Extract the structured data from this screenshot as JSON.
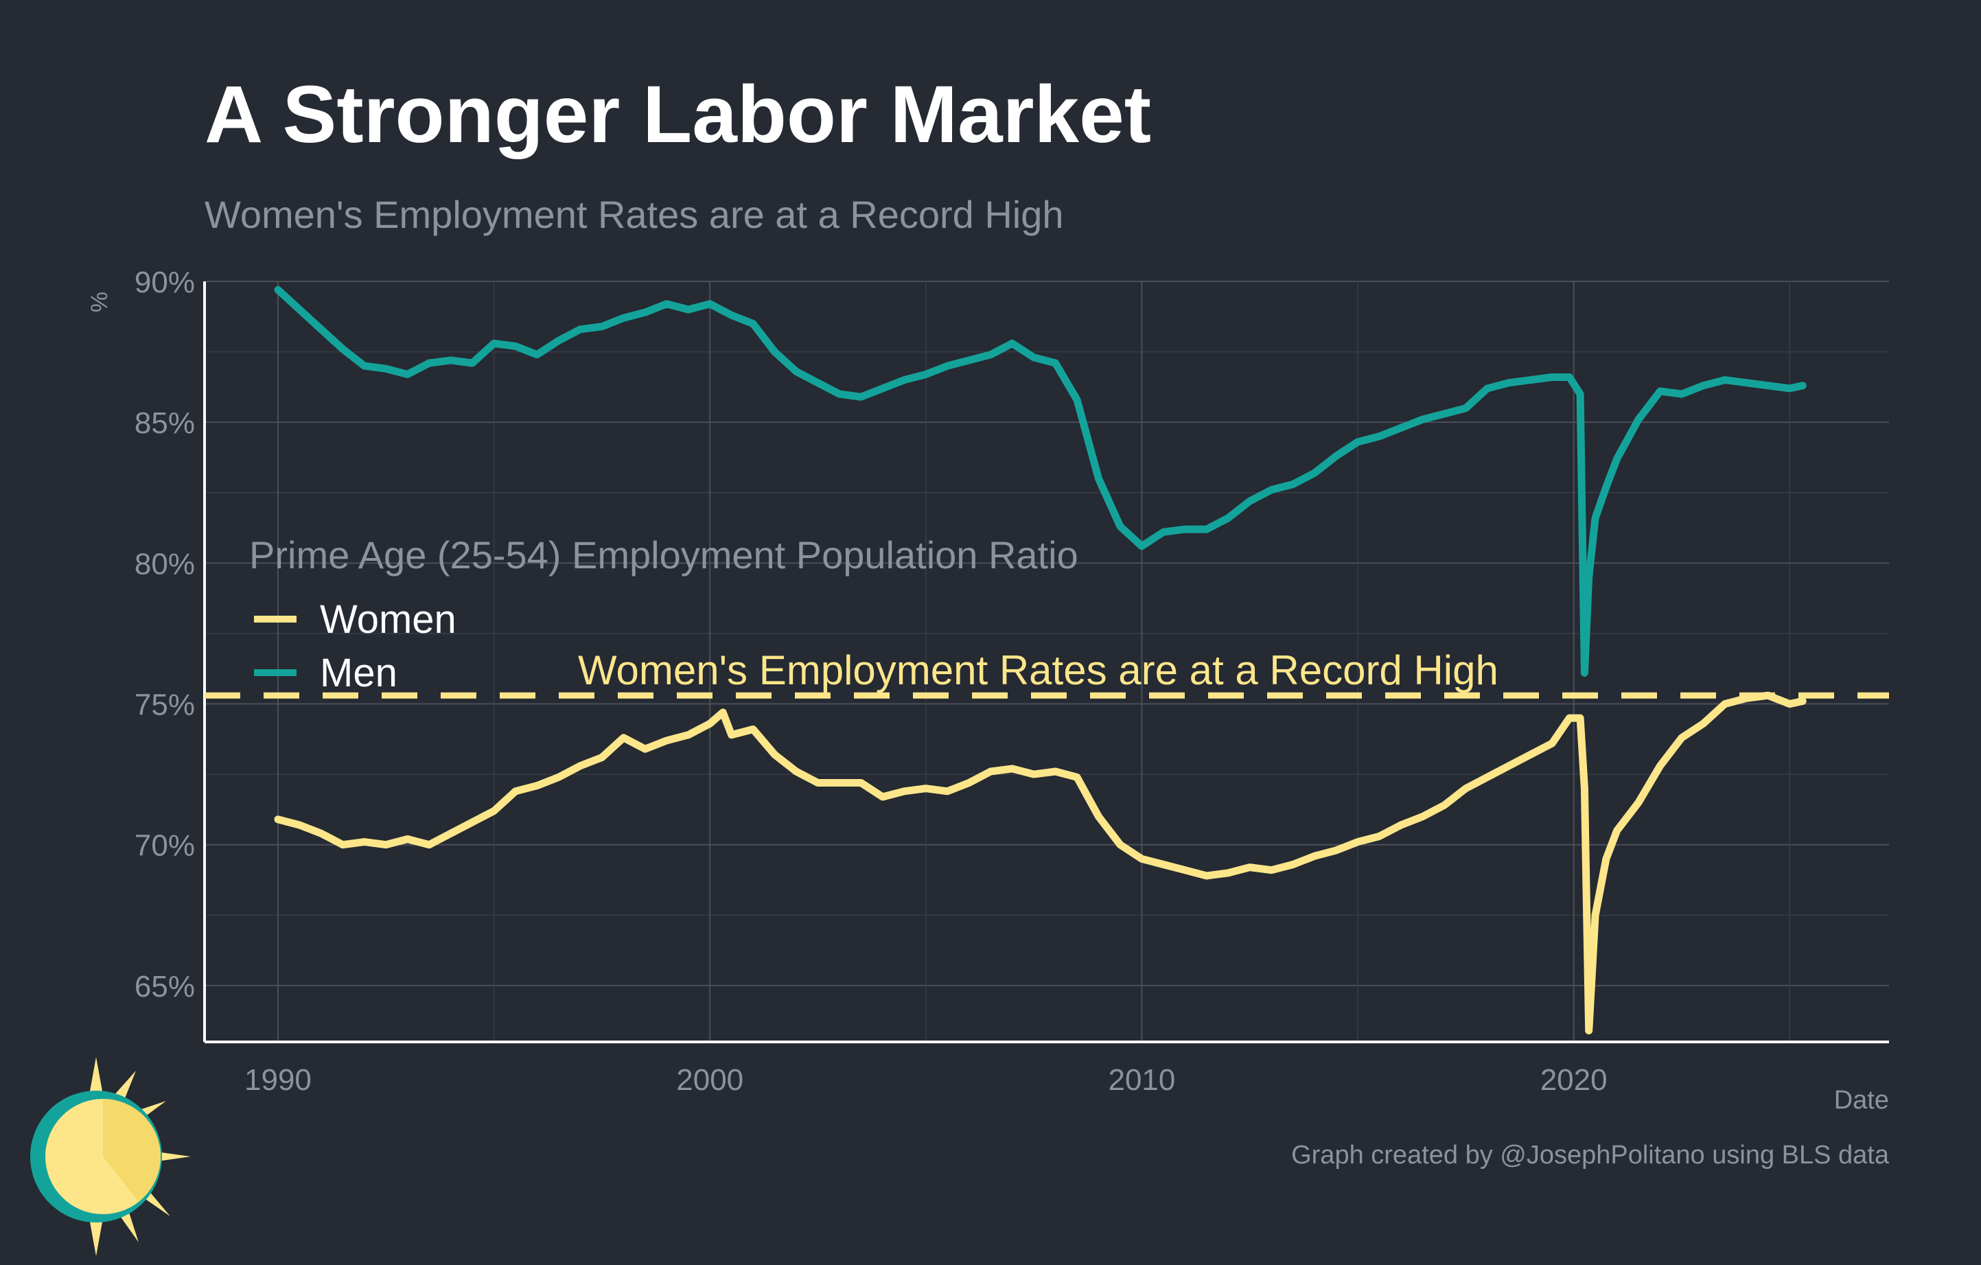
{
  "title": "A Stronger Labor Market",
  "subtitle": "Women's Employment Rates are at a Record High",
  "credit": "Graph created by @JosephPolitano using BLS data",
  "logo": {
    "icon": "sun-logo-icon"
  },
  "chart_data": {
    "type": "line",
    "ylabel": "%",
    "xlabel": "Date",
    "ylim": [
      63.0,
      90.0
    ],
    "xlim": [
      1988.3,
      2027.3
    ],
    "yticks": [
      65,
      70,
      75,
      80,
      85,
      90
    ],
    "ytick_labels": [
      "65%",
      "70%",
      "75%",
      "80%",
      "85%",
      "90%"
    ],
    "xticks": [
      1990,
      2000,
      2010,
      2020
    ],
    "xtick_labels": [
      "1990",
      "2000",
      "2010",
      "2020"
    ],
    "grid": true,
    "legend": {
      "title": "Prime Age (25-54) Employment Population Ratio",
      "placement": "left-middle"
    },
    "series": [
      {
        "name": "Women",
        "color": "#fde68a",
        "x": [
          1990.0,
          1990.5,
          1991.0,
          1991.5,
          1992.0,
          1992.5,
          1993.0,
          1993.5,
          1994.0,
          1994.5,
          1995.0,
          1995.5,
          1996.0,
          1996.5,
          1997.0,
          1997.5,
          1998.0,
          1998.5,
          1999.0,
          1999.5,
          2000.0,
          2000.3,
          2000.5,
          2001.0,
          2001.5,
          2002.0,
          2002.5,
          2003.0,
          2003.5,
          2004.0,
          2004.5,
          2005.0,
          2005.5,
          2006.0,
          2006.5,
          2007.0,
          2007.5,
          2008.0,
          2008.5,
          2009.0,
          2009.5,
          2010.0,
          2010.5,
          2011.0,
          2011.5,
          2012.0,
          2012.5,
          2013.0,
          2013.5,
          2014.0,
          2014.5,
          2015.0,
          2015.5,
          2016.0,
          2016.5,
          2017.0,
          2017.5,
          2018.0,
          2018.5,
          2019.0,
          2019.5,
          2019.9,
          2020.15,
          2020.25,
          2020.35,
          2020.5,
          2020.75,
          2021.0,
          2021.5,
          2022.0,
          2022.5,
          2023.0,
          2023.5,
          2024.0,
          2024.5,
          2025.0,
          2025.3
        ],
        "values": [
          70.9,
          70.7,
          70.4,
          70.0,
          70.1,
          70.0,
          70.2,
          70.0,
          70.4,
          70.8,
          71.2,
          71.9,
          72.1,
          72.4,
          72.8,
          73.1,
          73.8,
          73.4,
          73.7,
          73.9,
          74.3,
          74.7,
          73.9,
          74.1,
          73.2,
          72.6,
          72.2,
          72.2,
          72.2,
          71.7,
          71.9,
          72.0,
          71.9,
          72.2,
          72.6,
          72.7,
          72.5,
          72.6,
          72.4,
          71.0,
          70.0,
          69.5,
          69.3,
          69.1,
          68.9,
          69.0,
          69.2,
          69.1,
          69.3,
          69.6,
          69.8,
          70.1,
          70.3,
          70.7,
          71.0,
          71.4,
          72.0,
          72.4,
          72.8,
          73.2,
          73.6,
          74.5,
          74.5,
          72.0,
          63.4,
          67.5,
          69.5,
          70.5,
          71.5,
          72.8,
          73.8,
          74.3,
          75.0,
          75.2,
          75.3,
          75.0,
          75.1
        ]
      },
      {
        "name": "Men",
        "color": "#14a39a",
        "x": [
          1990.0,
          1990.5,
          1991.0,
          1991.5,
          1992.0,
          1992.5,
          1993.0,
          1993.5,
          1994.0,
          1994.5,
          1995.0,
          1995.5,
          1996.0,
          1996.5,
          1997.0,
          1997.5,
          1998.0,
          1998.5,
          1999.0,
          1999.5,
          2000.0,
          2000.5,
          2001.0,
          2001.5,
          2002.0,
          2002.5,
          2003.0,
          2003.5,
          2004.0,
          2004.5,
          2005.0,
          2005.5,
          2006.0,
          2006.5,
          2007.0,
          2007.5,
          2008.0,
          2008.5,
          2009.0,
          2009.5,
          2010.0,
          2010.5,
          2011.0,
          2011.5,
          2012.0,
          2012.5,
          2013.0,
          2013.5,
          2014.0,
          2014.5,
          2015.0,
          2015.5,
          2016.0,
          2016.5,
          2017.0,
          2017.5,
          2018.0,
          2018.5,
          2019.0,
          2019.5,
          2019.9,
          2020.15,
          2020.25,
          2020.35,
          2020.5,
          2020.75,
          2021.0,
          2021.5,
          2022.0,
          2022.5,
          2023.0,
          2023.5,
          2024.0,
          2024.5,
          2025.0,
          2025.3
        ],
        "values": [
          89.7,
          89.0,
          88.3,
          87.6,
          87.0,
          86.9,
          86.7,
          87.1,
          87.2,
          87.1,
          87.8,
          87.7,
          87.4,
          87.9,
          88.3,
          88.4,
          88.7,
          88.9,
          89.2,
          89.0,
          89.2,
          88.8,
          88.5,
          87.5,
          86.8,
          86.4,
          86.0,
          85.9,
          86.2,
          86.5,
          86.7,
          87.0,
          87.2,
          87.4,
          87.8,
          87.3,
          87.1,
          85.8,
          83.0,
          81.3,
          80.6,
          81.1,
          81.2,
          81.2,
          81.6,
          82.2,
          82.6,
          82.8,
          83.2,
          83.8,
          84.3,
          84.5,
          84.8,
          85.1,
          85.3,
          85.5,
          86.2,
          86.4,
          86.5,
          86.6,
          86.6,
          86.0,
          76.1,
          79.5,
          81.6,
          82.7,
          83.7,
          85.1,
          86.1,
          86.0,
          86.3,
          86.5,
          86.4,
          86.3,
          86.2,
          86.3
        ]
      }
    ],
    "reference_line": {
      "value": 75.3,
      "style": "dashed",
      "color": "#fde68a"
    },
    "annotation": {
      "text": "Women's Employment Rates are at a Record High",
      "x": 2007.6,
      "y": 75.7,
      "color": "#fde68a"
    }
  }
}
